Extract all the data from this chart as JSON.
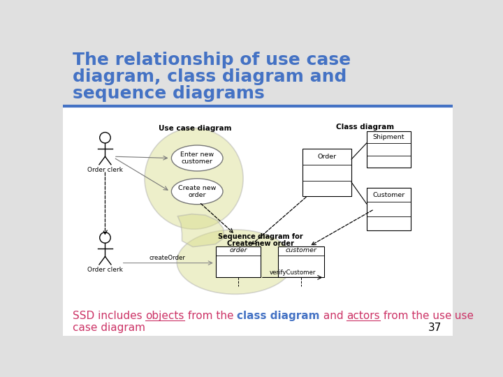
{
  "title_line1": "The relationship of use case",
  "title_line2": "diagram, class diagram and",
  "title_line3": "sequence diagrams",
  "title_color": "#4472C4",
  "bg_color": "#E0E0E0",
  "separator_color": "#4472C4",
  "use_case_label": "Use case diagram",
  "class_label": "Class diagram",
  "seq_label_line1": "Sequence diagram for",
  "seq_label_line2": "Create new order",
  "actor_label": "Order clerk",
  "oval_color": "#D8DC8A",
  "oval_edge": "#AAAAAA",
  "bottom_pink": "#CC3366",
  "bottom_blue": "#4472C4",
  "page_num": "37",
  "seg1": "SSD includes ",
  "seg2": "objects",
  "seg3": " from the ",
  "seg4": "class diagram",
  "seg5": " and ",
  "seg6": "actors",
  "seg7": " from the use",
  "seg8": "case diagram"
}
